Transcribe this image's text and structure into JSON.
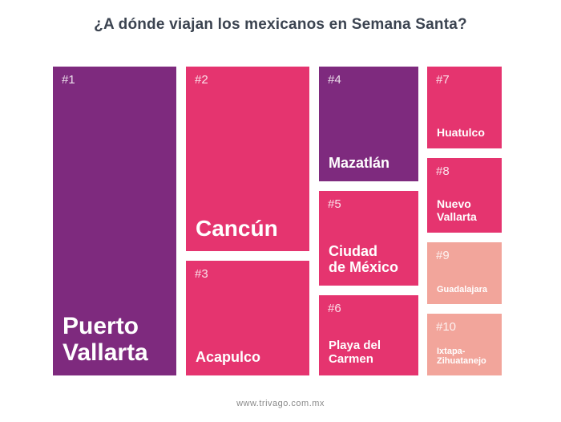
{
  "chart_data": {
    "type": "treemap",
    "title": "¿A dónde viajan los mexicanos en Semana Santa?",
    "items": [
      {
        "rank": "#1",
        "name": "Puerto Vallarta",
        "lines": [
          "Puerto",
          "Vallarta"
        ],
        "color": "#7e2a7e"
      },
      {
        "rank": "#2",
        "name": "Cancún",
        "lines": [
          "Cancún"
        ],
        "color": "#e5346f"
      },
      {
        "rank": "#3",
        "name": "Acapulco",
        "lines": [
          "Acapulco"
        ],
        "color": "#e5346f"
      },
      {
        "rank": "#4",
        "name": "Mazatlán",
        "lines": [
          "Mazatlán"
        ],
        "color": "#7e2a7e"
      },
      {
        "rank": "#5",
        "name": "Ciudad de México",
        "lines": [
          "Ciudad",
          "de México"
        ],
        "color": "#e5346f"
      },
      {
        "rank": "#6",
        "name": "Playa del Carmen",
        "lines": [
          "Playa del",
          "Carmen"
        ],
        "color": "#e5346f"
      },
      {
        "rank": "#7",
        "name": "Huatulco",
        "lines": [
          "Huatulco"
        ],
        "color": "#e5346f"
      },
      {
        "rank": "#8",
        "name": "Nuevo Vallarta",
        "lines": [
          "Nuevo",
          "Vallarta"
        ],
        "color": "#e5346f"
      },
      {
        "rank": "#9",
        "name": "Guadalajara",
        "lines": [
          "Guadalajara"
        ],
        "color": "#f2a59b"
      },
      {
        "rank": "#10",
        "name": "Ixtapa-Zihuatanejo",
        "lines": [
          "Ixtapa-",
          "Zihuatanejo"
        ],
        "color": "#f2a59b"
      }
    ]
  },
  "footer": "www.trivago.com.mx"
}
